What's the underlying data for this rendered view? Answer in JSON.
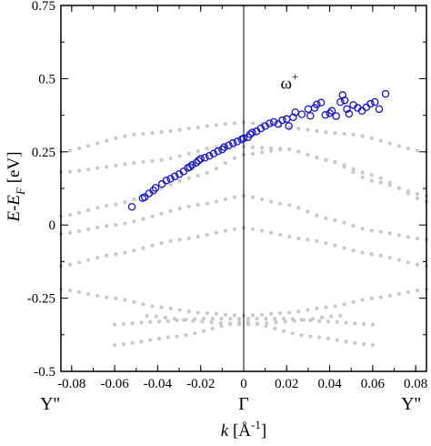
{
  "chart_data": {
    "type": "scatter",
    "title": "",
    "xlim": [
      -0.085,
      0.085
    ],
    "ylim": [
      -0.5,
      0.75
    ],
    "grid": false,
    "legend": "none",
    "x_ticks": [
      -0.08,
      -0.06,
      -0.04,
      -0.02,
      0,
      0.02,
      0.04,
      0.06,
      0.08
    ],
    "x_tick_labels": [
      "-0.08",
      "-0.06",
      "-0.04",
      "-0.02",
      "0",
      "0.02",
      "0.04",
      "0.06",
      "0.08"
    ],
    "y_ticks": [
      -0.5,
      -0.25,
      0,
      0.25,
      0.5,
      0.75
    ],
    "y_tick_labels": [
      "-0.5",
      "-0.25",
      "0",
      "0.25",
      "0.5",
      "0.75"
    ],
    "symmetry_points": [
      {
        "x": -0.085,
        "label": "Y''"
      },
      {
        "x": 0,
        "label": "Γ"
      },
      {
        "x": 0.085,
        "label": "Y''"
      }
    ],
    "xlabel": {
      "main": "k",
      "open": " [",
      "unit": "Å",
      "sup": "-1",
      "close": "]"
    },
    "ylabel": {
      "e": "E",
      "dash": "-",
      "e2": "E",
      "sub": "F",
      "unit": "  [eV]"
    },
    "annotation": {
      "text": "ω",
      "sup": "+",
      "x": 0.015,
      "y": 0.46
    },
    "vertical_line_x": 0,
    "colors": {
      "measured": "#1515c8",
      "bands": "#c8c8c8",
      "axis": "#000000"
    },
    "measured": [
      [
        -0.052,
        0.062
      ],
      [
        -0.047,
        0.092
      ],
      [
        -0.046,
        0.095
      ],
      [
        -0.044,
        0.108
      ],
      [
        -0.042,
        0.118
      ],
      [
        -0.041,
        0.127
      ],
      [
        -0.038,
        0.14
      ],
      [
        -0.036,
        0.152
      ],
      [
        -0.034,
        0.158
      ],
      [
        -0.032,
        0.166
      ],
      [
        -0.03,
        0.174
      ],
      [
        -0.028,
        0.183
      ],
      [
        -0.026,
        0.195
      ],
      [
        -0.025,
        0.198
      ],
      [
        -0.024,
        0.205
      ],
      [
        -0.022,
        0.213
      ],
      [
        -0.021,
        0.22
      ],
      [
        -0.02,
        0.226
      ],
      [
        -0.018,
        0.23
      ],
      [
        -0.016,
        0.236
      ],
      [
        -0.014,
        0.244
      ],
      [
        -0.012,
        0.252
      ],
      [
        -0.01,
        0.258
      ],
      [
        -0.009,
        0.266
      ],
      [
        -0.007,
        0.272
      ],
      [
        -0.005,
        0.28
      ],
      [
        -0.003,
        0.285
      ],
      [
        -0.001,
        0.292
      ],
      [
        0.0,
        0.296
      ],
      [
        0.002,
        0.3
      ],
      [
        0.003,
        0.31
      ],
      [
        0.004,
        0.316
      ],
      [
        0.006,
        0.32
      ],
      [
        0.008,
        0.33
      ],
      [
        0.01,
        0.338
      ],
      [
        0.012,
        0.347
      ],
      [
        0.014,
        0.352
      ],
      [
        0.016,
        0.345
      ],
      [
        0.018,
        0.358
      ],
      [
        0.02,
        0.362
      ],
      [
        0.021,
        0.338
      ],
      [
        0.023,
        0.368
      ],
      [
        0.024,
        0.385
      ],
      [
        0.027,
        0.378
      ],
      [
        0.03,
        0.396
      ],
      [
        0.031,
        0.373
      ],
      [
        0.033,
        0.4
      ],
      [
        0.034,
        0.412
      ],
      [
        0.036,
        0.418
      ],
      [
        0.038,
        0.376
      ],
      [
        0.04,
        0.382
      ],
      [
        0.041,
        0.39
      ],
      [
        0.043,
        0.372
      ],
      [
        0.045,
        0.42
      ],
      [
        0.046,
        0.444
      ],
      [
        0.047,
        0.426
      ],
      [
        0.048,
        0.396
      ],
      [
        0.049,
        0.38
      ],
      [
        0.051,
        0.41
      ],
      [
        0.053,
        0.4
      ],
      [
        0.055,
        0.39
      ],
      [
        0.057,
        0.402
      ],
      [
        0.059,
        0.414
      ],
      [
        0.061,
        0.42
      ],
      [
        0.063,
        0.396
      ],
      [
        0.066,
        0.448
      ]
    ],
    "band_curves": [
      {
        "x": [
          -0.085,
          -0.05,
          0,
          0.05,
          0.085
        ],
        "y": [
          0.25,
          0.31,
          0.35,
          0.31,
          0.25
        ]
      },
      {
        "x": [
          -0.085,
          -0.04,
          -0.01,
          0.02,
          0.04,
          0.06,
          0.085
        ],
        "y": [
          0.18,
          0.22,
          0.27,
          0.26,
          0.22,
          0.15,
          0.1
        ]
      },
      {
        "x": [
          -0.085,
          -0.06,
          -0.02,
          0.0,
          0.02,
          0.04,
          0.06,
          0.085
        ],
        "y": [
          0.03,
          0.07,
          0.17,
          0.24,
          0.26,
          0.22,
          0.17,
          0.08
        ]
      },
      {
        "x": [
          -0.085,
          -0.06,
          -0.02,
          0.0,
          0.02,
          0.04,
          0.06,
          0.085
        ],
        "y": [
          -0.03,
          0.0,
          0.07,
          0.1,
          0.07,
          0.02,
          -0.02,
          -0.05
        ]
      },
      {
        "x": [
          -0.085,
          -0.06,
          -0.03,
          0.0,
          0.03,
          0.06,
          0.085
        ],
        "y": [
          -0.14,
          -0.1,
          -0.05,
          -0.01,
          -0.05,
          -0.1,
          -0.14
        ]
      },
      {
        "x": [
          -0.085,
          -0.06,
          -0.04,
          -0.02,
          0.0,
          0.02,
          0.04,
          0.06,
          0.085
        ],
        "y": [
          -0.22,
          -0.25,
          -0.28,
          -0.3,
          -0.31,
          -0.3,
          -0.28,
          -0.25,
          -0.22
        ]
      },
      {
        "x": [
          -0.045,
          -0.02,
          0.0,
          0.02,
          0.045
        ],
        "y": [
          -0.31,
          -0.33,
          -0.34,
          -0.33,
          -0.31
        ]
      },
      {
        "x": [
          -0.06,
          -0.03,
          0.0,
          0.03,
          0.06
        ],
        "y": [
          -0.41,
          -0.38,
          -0.33,
          -0.38,
          -0.41
        ]
      },
      {
        "x": [
          -0.06,
          -0.04,
          -0.02,
          0.0,
          0.02,
          0.04,
          0.06
        ],
        "y": [
          -0.34,
          -0.33,
          -0.32,
          -0.32,
          -0.32,
          -0.33,
          -0.34
        ]
      }
    ]
  }
}
